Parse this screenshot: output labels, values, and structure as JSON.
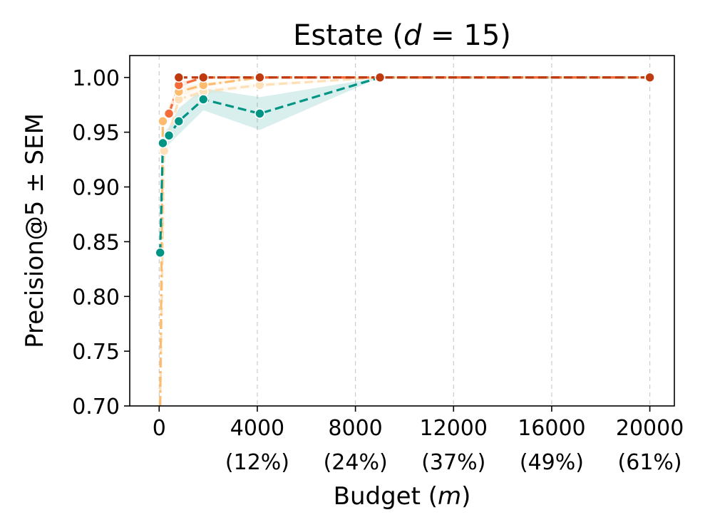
{
  "chart_data": {
    "type": "line",
    "title_prefix": "Estate (",
    "title_var": "d",
    "title_suffix": " = 15)",
    "xlabel_prefix": "Budget (",
    "xlabel_var": "m",
    "xlabel_suffix": ")",
    "ylabel": "Precision@5 ± SEM",
    "xlim": [
      -1200,
      21000
    ],
    "ylim": [
      0.7,
      1.02
    ],
    "grid": "vertical dashed",
    "xticks": [
      {
        "value": 0,
        "label": "0",
        "sub": ""
      },
      {
        "value": 4000,
        "label": "4000",
        "sub": "(12%)"
      },
      {
        "value": 8000,
        "label": "8000",
        "sub": "(24%)"
      },
      {
        "value": 12000,
        "label": "12000",
        "sub": "(37%)"
      },
      {
        "value": 16000,
        "label": "16000",
        "sub": "(49%)"
      },
      {
        "value": 20000,
        "label": "20000",
        "sub": "(61%)"
      }
    ],
    "yticks": [
      {
        "value": 0.7,
        "label": "0.70"
      },
      {
        "value": 0.75,
        "label": "0.75"
      },
      {
        "value": 0.8,
        "label": "0.80"
      },
      {
        "value": 0.85,
        "label": "0.85"
      },
      {
        "value": 0.9,
        "label": "0.90"
      },
      {
        "value": 0.95,
        "label": "0.95"
      },
      {
        "value": 1.0,
        "label": "1.00"
      }
    ],
    "series": [
      {
        "color": "#fde0b8",
        "x": [
          40,
          200,
          800,
          1800,
          4100,
          9000,
          20000
        ],
        "y": [
          0.68,
          0.933,
          0.98,
          0.987,
          0.993,
          1.0,
          1.0
        ],
        "sem": [
          0.01,
          0.006,
          0.004,
          0.003,
          0.002,
          0,
          0
        ]
      },
      {
        "color": "#fdbb6e",
        "x": [
          40,
          150,
          800,
          1800,
          4100,
          9000,
          20000
        ],
        "y": [
          0.69,
          0.96,
          0.987,
          0.993,
          1.0,
          1.0,
          1.0
        ],
        "sem": [
          0.01,
          0.005,
          0.004,
          0.002,
          0,
          0,
          0
        ]
      },
      {
        "color": "#009485",
        "x": [
          40,
          150,
          400,
          800,
          1800,
          4100,
          9000,
          20000
        ],
        "y": [
          0.84,
          0.94,
          0.947,
          0.96,
          0.98,
          0.967,
          1.0,
          1.0
        ],
        "sem": [
          0.012,
          0.008,
          0.008,
          0.012,
          0.01,
          0.015,
          0,
          0
        ]
      },
      {
        "color": "#f26b38",
        "x": [
          400,
          800,
          1800,
          4100,
          9000,
          20000
        ],
        "y": [
          0.967,
          0.993,
          1.0,
          1.0,
          1.0,
          1.0
        ],
        "sem": [
          0.004,
          0.003,
          0,
          0,
          0,
          0
        ]
      },
      {
        "color": "#c03a10",
        "x": [
          800,
          1800,
          4100,
          9000,
          20000
        ],
        "y": [
          1.0,
          1.0,
          1.0,
          1.0,
          1.0
        ],
        "sem": [
          0,
          0,
          0,
          0,
          0
        ]
      }
    ]
  }
}
